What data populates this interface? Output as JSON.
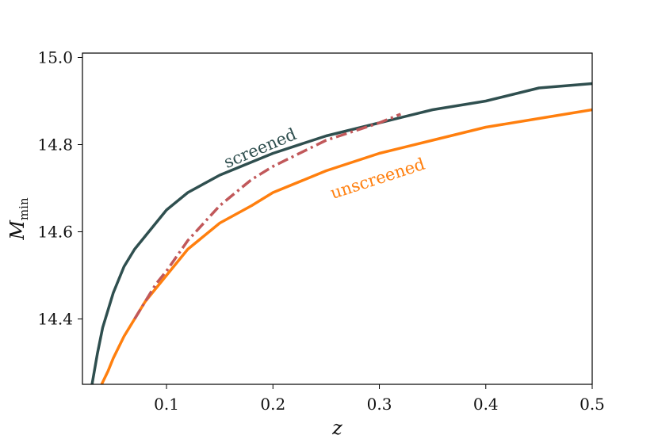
{
  "chart_data": {
    "type": "line",
    "title": "",
    "xlabel": "z",
    "ylabel": "M",
    "ylabel_sub": "min",
    "xlim": [
      0.021,
      0.5
    ],
    "ylim": [
      14.25,
      15.01
    ],
    "xticks": [
      0.1,
      0.2,
      0.3,
      0.4,
      0.5
    ],
    "xtick_labels": [
      "0.1",
      "0.2",
      "0.3",
      "0.4",
      "0.5"
    ],
    "yticks": [
      14.4,
      14.6,
      14.8,
      15.0
    ],
    "ytick_labels": [
      "14.4",
      "14.6",
      "14.8",
      "15.0"
    ],
    "grid": false,
    "series": [
      {
        "name": "screened",
        "color": "#2f4f4f",
        "style": "solid",
        "x": [
          0.03,
          0.035,
          0.04,
          0.05,
          0.06,
          0.07,
          0.08,
          0.1,
          0.12,
          0.15,
          0.18,
          0.2,
          0.25,
          0.3,
          0.35,
          0.4,
          0.45,
          0.5
        ],
        "y": [
          14.25,
          14.32,
          14.38,
          14.46,
          14.52,
          14.56,
          14.59,
          14.65,
          14.69,
          14.73,
          14.76,
          14.78,
          14.82,
          14.85,
          14.88,
          14.9,
          14.93,
          14.94
        ]
      },
      {
        "name": "unscreened",
        "color": "#ff7f0e",
        "style": "solid",
        "x": [
          0.039,
          0.045,
          0.05,
          0.06,
          0.07,
          0.08,
          0.1,
          0.12,
          0.15,
          0.18,
          0.2,
          0.25,
          0.3,
          0.35,
          0.4,
          0.45,
          0.5
        ],
        "y": [
          14.25,
          14.28,
          14.31,
          14.36,
          14.4,
          14.44,
          14.5,
          14.56,
          14.62,
          14.66,
          14.69,
          14.74,
          14.78,
          14.81,
          14.84,
          14.86,
          14.88
        ]
      },
      {
        "name": "",
        "color": "#c1585a",
        "style": "dashdot",
        "x": [
          0.07,
          0.08,
          0.09,
          0.1,
          0.12,
          0.15,
          0.18,
          0.2,
          0.25,
          0.3,
          0.32
        ],
        "y": [
          14.4,
          14.44,
          14.48,
          14.51,
          14.58,
          14.66,
          14.72,
          14.75,
          14.81,
          14.85,
          14.87
        ]
      }
    ],
    "annotations": [
      {
        "text": "screened",
        "x": 0.19,
        "y": 14.78,
        "rotation": -23,
        "color": "#2f4f4f"
      },
      {
        "text": "unscreened",
        "x": 0.3,
        "y": 14.71,
        "rotation": -18,
        "color": "#ff7f0e"
      }
    ]
  }
}
